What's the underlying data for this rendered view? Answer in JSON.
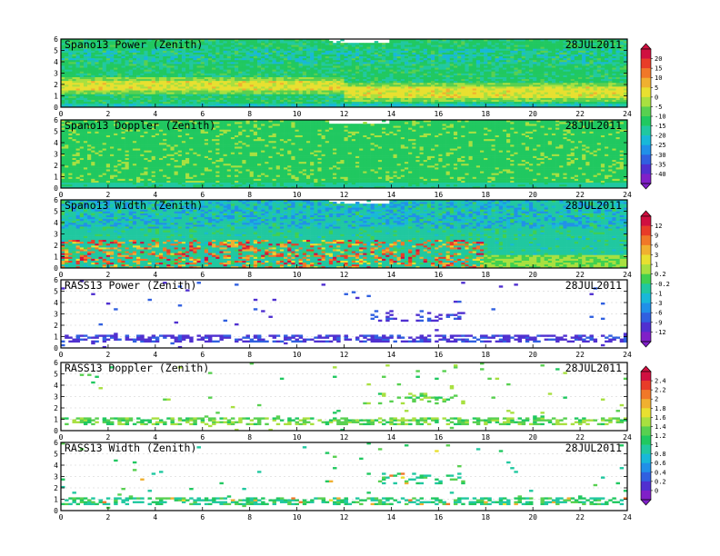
{
  "figure": {
    "date_label": "28JUL2011"
  },
  "chart_data": [
    {
      "type": "heatmap",
      "title": "Spano13 Power (Zenith)",
      "date": "28JUL2011",
      "xlim": [
        0,
        24
      ],
      "ylim": [
        0,
        6
      ],
      "x_ticks": [
        0,
        2,
        4,
        6,
        8,
        10,
        12,
        14,
        16,
        18,
        20,
        22,
        24
      ],
      "y_ticks": [
        0,
        1,
        2,
        3,
        4,
        5,
        6
      ],
      "colorbar": "A",
      "fill": "dense",
      "dominant_values": "mostly -25 to -15 (green/cyan); -5 to 5 (yellow/orange) band near 1.5-2.3 km from 0-12 h, drifting to 1.0-1.5 km after 12 h; low cyan/blue patches near 4-5 km",
      "gaps": "white data gaps at top near 12-14 h"
    },
    {
      "type": "heatmap",
      "title": "Spano13 Doppler (Zenith)",
      "date": "28JUL2011",
      "xlim": [
        0,
        24
      ],
      "ylim": [
        0,
        6
      ],
      "x_ticks": [
        0,
        2,
        4,
        6,
        8,
        10,
        12,
        14,
        16,
        18,
        20,
        22,
        24
      ],
      "y_ticks": [
        0,
        1,
        2,
        3,
        4,
        5,
        6
      ],
      "colorbar": "A",
      "fill": "dense",
      "dominant_values": "mostly -20 to -15 (green) with scattered -10 to -5 (light green/yellow) vertical streaks; cyan near 0-0.5 km",
      "gaps": "white data gaps at top near 12-14 h"
    },
    {
      "type": "heatmap",
      "title": "Spano13 Width (Zenith)",
      "date": "28JUL2011",
      "xlim": [
        0,
        24
      ],
      "ylim": [
        0,
        6
      ],
      "x_ticks": [
        0,
        2,
        4,
        6,
        8,
        10,
        12,
        14,
        16,
        18,
        20,
        22,
        24
      ],
      "y_ticks": [
        0,
        1,
        2,
        3,
        4,
        5,
        6
      ],
      "colorbar": "B",
      "fill": "dense",
      "dominant_values": "mostly -3 to 0.2 (cyan/green); blue/purple -6 to -9 speckles above 3.5 km; 1 to 12 (yellow/orange/red) below 2.5 km from 0-18 h",
      "gaps": "white data gaps at top near 12-14 h"
    },
    {
      "type": "heatmap",
      "title": "RASS13 Power (Zenith)",
      "date": "28JUL2011",
      "xlim": [
        0,
        24
      ],
      "ylim": [
        0,
        6
      ],
      "x_ticks": [
        0,
        2,
        4,
        6,
        8,
        10,
        12,
        14,
        16,
        18,
        20,
        22,
        24
      ],
      "y_ticks": [
        0,
        1,
        2,
        3,
        4,
        5,
        6
      ],
      "colorbar": "B",
      "fill": "sparse",
      "dominant_values": "-12 to -9 (violet/purple) band at 0.4-1.2 km all day; scattered purple/blue points up to 5 km, cluster 13-17 h near 2.5-3.3 km"
    },
    {
      "type": "heatmap",
      "title": "RASS13 Doppler (Zenith)",
      "date": "28JUL2011",
      "xlim": [
        0,
        24
      ],
      "ylim": [
        0,
        6
      ],
      "x_ticks": [
        0,
        2,
        4,
        6,
        8,
        10,
        12,
        14,
        16,
        18,
        20,
        22,
        24
      ],
      "y_ticks": [
        0,
        1,
        2,
        3,
        4,
        5,
        6
      ],
      "colorbar": "C",
      "fill": "sparse",
      "dominant_values": "1.2 to 1.6 (green) band at 0.4-1.2 km all day; scattered yellow/green points up to 5 km, cluster 13-17 h near 2.5-3.3 km"
    },
    {
      "type": "heatmap",
      "title": "RASS13 Width (Zenith)",
      "date": "28JUL2011",
      "xlim": [
        0,
        24
      ],
      "ylim": [
        0,
        6
      ],
      "x_ticks": [
        0,
        2,
        4,
        6,
        8,
        10,
        12,
        14,
        16,
        18,
        20,
        22,
        24
      ],
      "y_ticks": [
        0,
        1,
        2,
        3,
        4,
        5,
        6
      ],
      "colorbar": "C",
      "fill": "sparse",
      "dominant_values": "0.6 to 1.2 (cyan/green) band at 0.4-1.2 km with yellow/orange specks; scattered teal points up to 5 km"
    }
  ],
  "colorbars": {
    "A": {
      "labels": [
        "20",
        "15",
        "10",
        "5",
        "0",
        "-5",
        "-10",
        "-15",
        "-20",
        "-25",
        "-30",
        "-35",
        "-40"
      ],
      "colors": [
        "#d01040",
        "#e83c28",
        "#f07828",
        "#f0b030",
        "#e8e030",
        "#a8e040",
        "#58d050",
        "#20c860",
        "#20c8a0",
        "#18b8d8",
        "#2090e8",
        "#3060e0",
        "#5030d0",
        "#8020c8"
      ]
    },
    "B": {
      "labels": [
        "12",
        "9",
        "6",
        "3",
        "1",
        "0.2",
        "-0.2",
        "-1",
        "-3",
        "-6",
        "-9",
        "-12"
      ],
      "colors": [
        "#d01040",
        "#e83c28",
        "#f07828",
        "#f0b030",
        "#e8e030",
        "#a8e040",
        "#40d050",
        "#20c8a0",
        "#18b8d8",
        "#2090e8",
        "#3060e0",
        "#5030d0",
        "#8020c8"
      ]
    },
    "C": {
      "labels": [
        "2.4",
        "2.2",
        "2",
        "1.8",
        "1.6",
        "1.4",
        "1.2",
        "1",
        "0.8",
        "0.6",
        "0.4",
        "0.2",
        "0"
      ],
      "colors": [
        "#d01040",
        "#e83c28",
        "#f07828",
        "#f0b030",
        "#e8e030",
        "#a8e040",
        "#58d050",
        "#20c860",
        "#20c8a0",
        "#18b8d8",
        "#2090e8",
        "#3060e0",
        "#5030d0",
        "#8020c8"
      ]
    }
  }
}
